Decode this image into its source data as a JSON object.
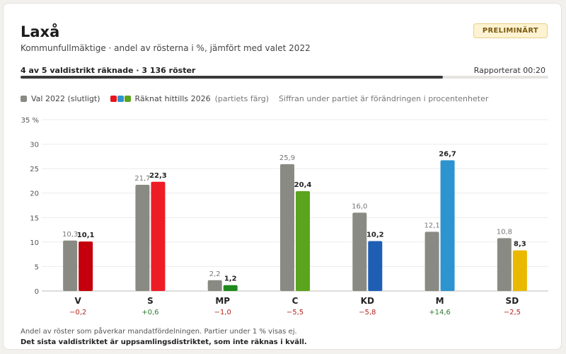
{
  "header": {
    "title": "Laxå",
    "subtitle": "Kommunfullmäktige · andel av rösterna i %, jämfört med valet 2022",
    "badge": "PRELIMINÄRT"
  },
  "progress": {
    "text": "4 av 5 valdistrikt räknade · 3 136 röster",
    "reported": "Rapporterat 00:20",
    "fraction": 0.8
  },
  "legend": {
    "prev": "Val 2022 (slutligt)",
    "curr": "Räknat hittills 2026",
    "curr_note": "(partiets färg)",
    "change_note": "Siffran under partiet är förändringen i procentenheter",
    "prev_color": "#8a8a84",
    "curr_swatch_colors": [
      "#e8141c",
      "#2d94cf",
      "#5aa41e"
    ]
  },
  "chart_data": {
    "type": "bar",
    "ylim": [
      0,
      35
    ],
    "yticks": [
      0,
      5,
      10,
      15,
      20,
      25,
      30,
      35
    ],
    "ytick_labels": [
      "0",
      "5",
      "10",
      "15",
      "20",
      "25",
      "30",
      "35 %"
    ],
    "categories": [
      "V",
      "S",
      "MP",
      "C",
      "KD",
      "M",
      "SD"
    ],
    "series": [
      {
        "name": "Val 2022 (slutligt)",
        "values": [
          10.3,
          21.7,
          2.2,
          25.9,
          16.0,
          12.1,
          10.8
        ],
        "labels": [
          "10,3",
          "21,7",
          "2,2",
          "25,9",
          "16,0",
          "12,1",
          "10,8"
        ],
        "color": "#8a8a84"
      },
      {
        "name": "Räknat hittills 2026",
        "values": [
          10.1,
          22.3,
          1.2,
          20.4,
          10.2,
          26.7,
          8.3
        ],
        "labels": [
          "10,1",
          "22,3",
          "1,2",
          "20,4",
          "10,2",
          "26,7",
          "8,3"
        ],
        "colors": [
          "#c3000c",
          "#ee1c25",
          "#1e8a1e",
          "#5aa41e",
          "#1f5fb3",
          "#2d94cf",
          "#ebb800"
        ]
      }
    ],
    "changes": [
      "−0,2",
      "+0,6",
      "−1,0",
      "−5,5",
      "−5,8",
      "+14,6",
      "−2,5"
    ],
    "change_colors": [
      "#b3261e",
      "#2e7d32",
      "#b3261e",
      "#b3261e",
      "#b3261e",
      "#2e7d32",
      "#b3261e"
    ],
    "grid": true
  },
  "footnote": {
    "line1": "Andel av röster som påverkar mandatfördelningen. Partier under 1 % visas ej.",
    "line2": "Det sista valdistriktet är uppsamlingsdistriktet, som inte räknas i kväll."
  }
}
